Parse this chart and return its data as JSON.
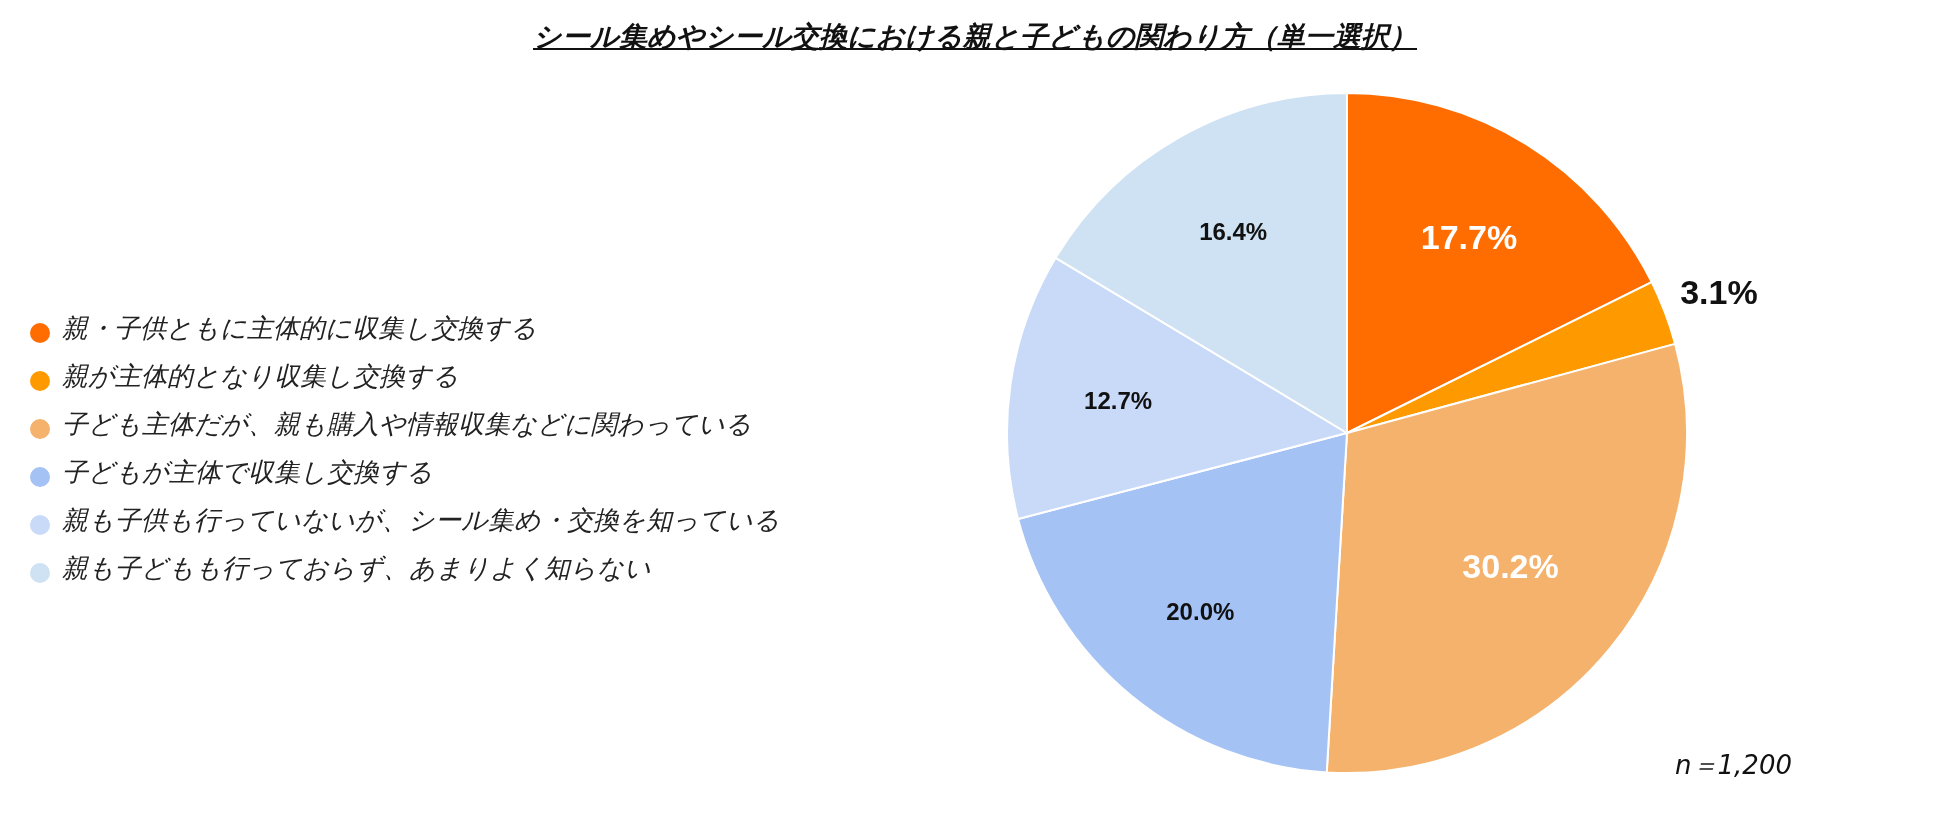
{
  "chart_data": {
    "type": "pie",
    "title": "シール集めやシール交換における親と子どもの関わり方（単一選択）",
    "categories": [
      "親・子供ともに主体的に収集し交換する",
      "親が主体的となり収集し交換する",
      "子ども主体だが、親も購入や情報収集などに関わっている",
      "子どもが主体で収集し交換する",
      "親も子供も行っていないが、シール集め・交換を知っている",
      "親も子どもも行っておらず、あまりよく知らない"
    ],
    "values": [
      17.7,
      3.1,
      30.2,
      20.0,
      12.7,
      16.4
    ],
    "value_labels": [
      "17.7%",
      "3.1%",
      "30.2%",
      "20.0%",
      "12.7%",
      "16.4%"
    ],
    "colors": [
      "#ff6d00",
      "#ff9900",
      "#f4b26c",
      "#a4c2f4",
      "#c9daf8",
      "#cfe2f3"
    ],
    "legend": "left",
    "annotations": [
      "n＝1,200"
    ]
  }
}
